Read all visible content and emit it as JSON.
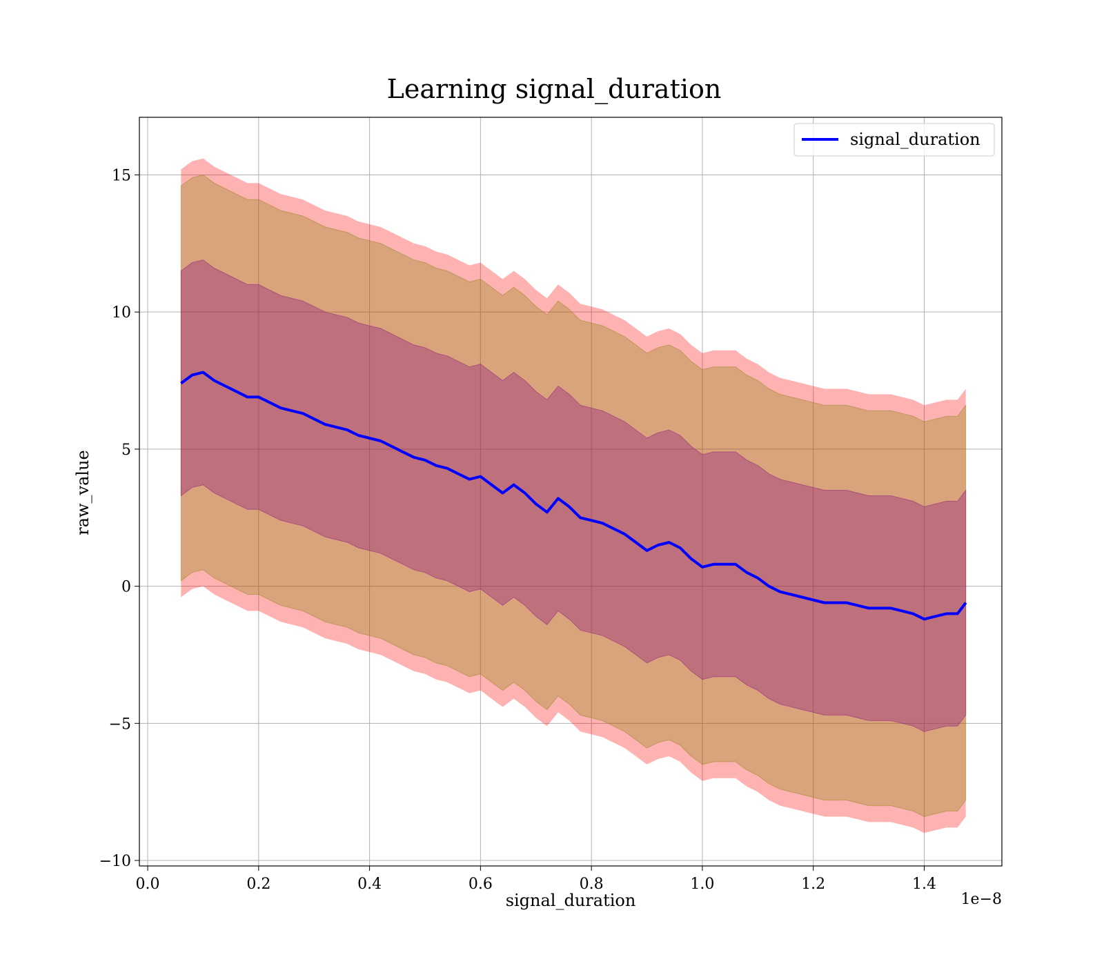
{
  "chart_data": {
    "type": "area",
    "title": "Learning signal_duration",
    "xlabel": "signal_duration",
    "ylabel": "raw_value",
    "x_offset_label": "1e−8",
    "xlim": [
      -0.015,
      1.54
    ],
    "ylim": [
      -10.2,
      17.1
    ],
    "xticks": [
      0.0,
      0.2,
      0.4,
      0.6,
      0.8,
      1.0,
      1.2,
      1.4
    ],
    "xtick_labels": [
      "0.0",
      "0.2",
      "0.4",
      "0.6",
      "0.8",
      "1.0",
      "1.2",
      "1.4"
    ],
    "yticks": [
      -10,
      -5,
      0,
      5,
      10,
      15
    ],
    "ytick_labels": [
      "−10",
      "−5",
      "0",
      "5",
      "10",
      "15"
    ],
    "grid": true,
    "legend_position": "top-right",
    "colors": {
      "line": "#0000ff",
      "band_outer": "#ff0000",
      "band_middle": "#808000",
      "band_inner": "#800080"
    },
    "series": [
      {
        "name": "signal_duration",
        "x": [
          0.06,
          0.08,
          0.1,
          0.12,
          0.14,
          0.16,
          0.18,
          0.2,
          0.22,
          0.24,
          0.26,
          0.28,
          0.3,
          0.32,
          0.34,
          0.36,
          0.38,
          0.4,
          0.42,
          0.44,
          0.46,
          0.48,
          0.5,
          0.52,
          0.54,
          0.56,
          0.58,
          0.6,
          0.62,
          0.64,
          0.66,
          0.68,
          0.7,
          0.72,
          0.74,
          0.76,
          0.78,
          0.8,
          0.82,
          0.84,
          0.86,
          0.88,
          0.9,
          0.92,
          0.94,
          0.96,
          0.98,
          1.0,
          1.02,
          1.04,
          1.06,
          1.08,
          1.1,
          1.12,
          1.14,
          1.16,
          1.18,
          1.2,
          1.22,
          1.24,
          1.26,
          1.28,
          1.3,
          1.32,
          1.34,
          1.36,
          1.38,
          1.4,
          1.42,
          1.44,
          1.46,
          1.475
        ],
        "values": [
          7.4,
          7.7,
          7.8,
          7.5,
          7.3,
          7.1,
          6.9,
          6.9,
          6.7,
          6.5,
          6.4,
          6.3,
          6.1,
          5.9,
          5.8,
          5.7,
          5.5,
          5.4,
          5.3,
          5.1,
          4.9,
          4.7,
          4.6,
          4.4,
          4.3,
          4.1,
          3.9,
          4.0,
          3.7,
          3.4,
          3.7,
          3.4,
          3.0,
          2.7,
          3.2,
          2.9,
          2.5,
          2.4,
          2.3,
          2.1,
          1.9,
          1.6,
          1.3,
          1.5,
          1.6,
          1.4,
          1.0,
          0.7,
          0.8,
          0.8,
          0.8,
          0.5,
          0.3,
          0.0,
          -0.2,
          -0.3,
          -0.4,
          -0.5,
          -0.6,
          -0.6,
          -0.6,
          -0.7,
          -0.8,
          -0.8,
          -0.8,
          -0.9,
          -1.0,
          -1.2,
          -1.1,
          -1.0,
          -1.0,
          -0.6
        ],
        "band_inner_half_width": 4.1,
        "band_middle_half_width": 7.2,
        "band_outer_half_width": 7.8
      }
    ]
  }
}
